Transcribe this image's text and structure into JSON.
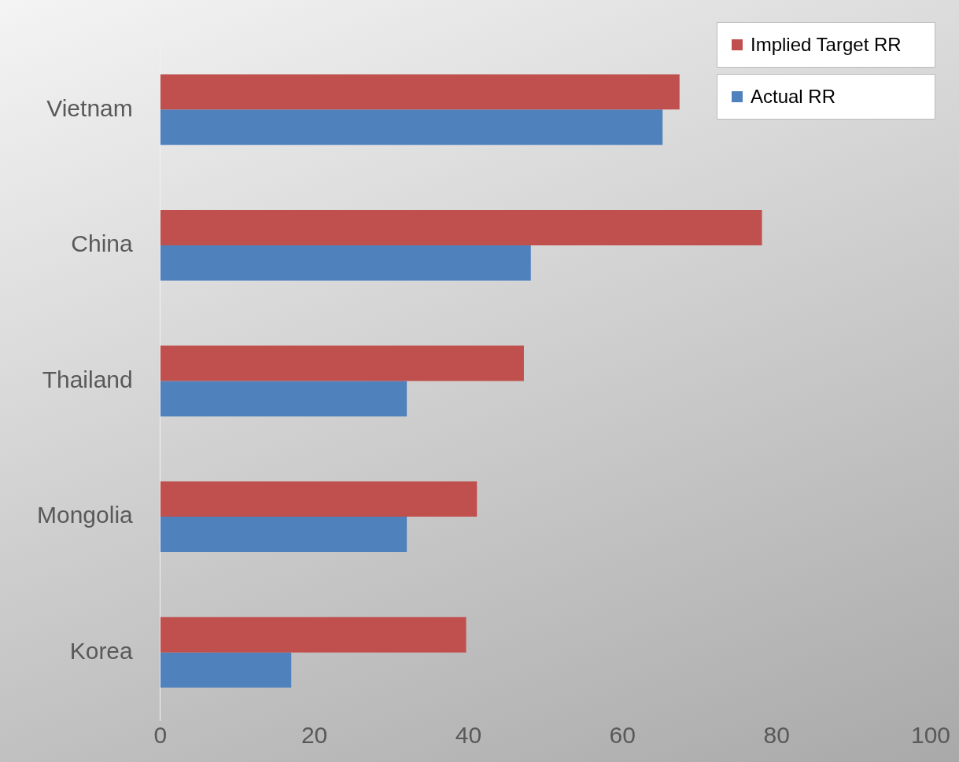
{
  "chart_data": {
    "type": "bar",
    "orientation": "horizontal",
    "categories": [
      "Vietnam",
      "China",
      "Thailand",
      "Mongolia",
      "Korea"
    ],
    "series": [
      {
        "name": "Implied Target RR",
        "color": "#c0504d",
        "values": [
          67.4,
          78.1,
          47.2,
          41.1,
          39.7
        ]
      },
      {
        "name": "Actual RR",
        "color": "#4f81bd",
        "values": [
          65.2,
          48.1,
          32,
          32,
          17
        ]
      }
    ],
    "xlim": [
      0,
      100
    ],
    "xticks": [
      0,
      20,
      40,
      60,
      80,
      100
    ],
    "grid": false,
    "legend": "top right"
  }
}
